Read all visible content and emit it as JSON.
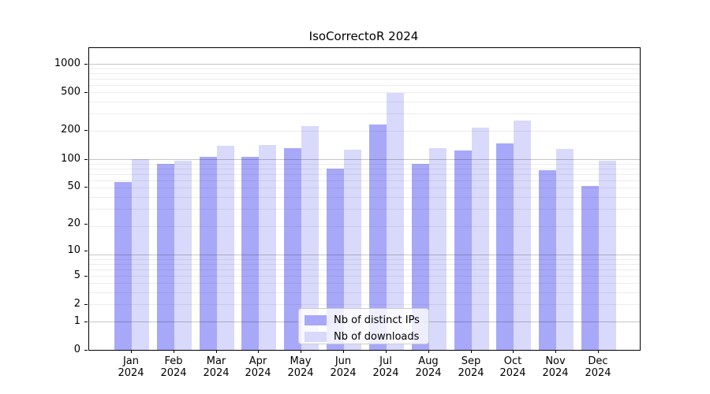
{
  "chart_data": {
    "type": "bar",
    "title": "IsoCorrectoR 2024",
    "categories": [
      "Jan 2024",
      "Feb 2024",
      "Mar 2024",
      "Apr 2024",
      "May 2024",
      "Jun 2024",
      "Jul 2024",
      "Aug 2024",
      "Sep 2024",
      "Oct 2024",
      "Nov 2024",
      "Dec 2024"
    ],
    "series": [
      {
        "name": "Nb of distinct IPs",
        "color": "#a8a8f9",
        "values": [
          57,
          89,
          104,
          104,
          130,
          78,
          230,
          89,
          122,
          146,
          75,
          51
        ]
      },
      {
        "name": "Nb of downloads",
        "color": "#d9d9fb",
        "values": [
          100,
          95,
          137,
          141,
          220,
          125,
          490,
          130,
          212,
          252,
          128,
          95
        ]
      }
    ],
    "xlabel": "",
    "ylabel": "",
    "yticks": [
      0,
      1,
      2,
      5,
      10,
      20,
      50,
      100,
      200,
      500,
      1000
    ],
    "yscale": "log1p",
    "ylim": [
      0,
      1460
    ],
    "grid": true,
    "legend_position": "lower center",
    "colors": {
      "grid_major": "#c9c9c9",
      "grid_minor": "#ececec",
      "axis": "#000000",
      "background": "#ffffff"
    }
  }
}
